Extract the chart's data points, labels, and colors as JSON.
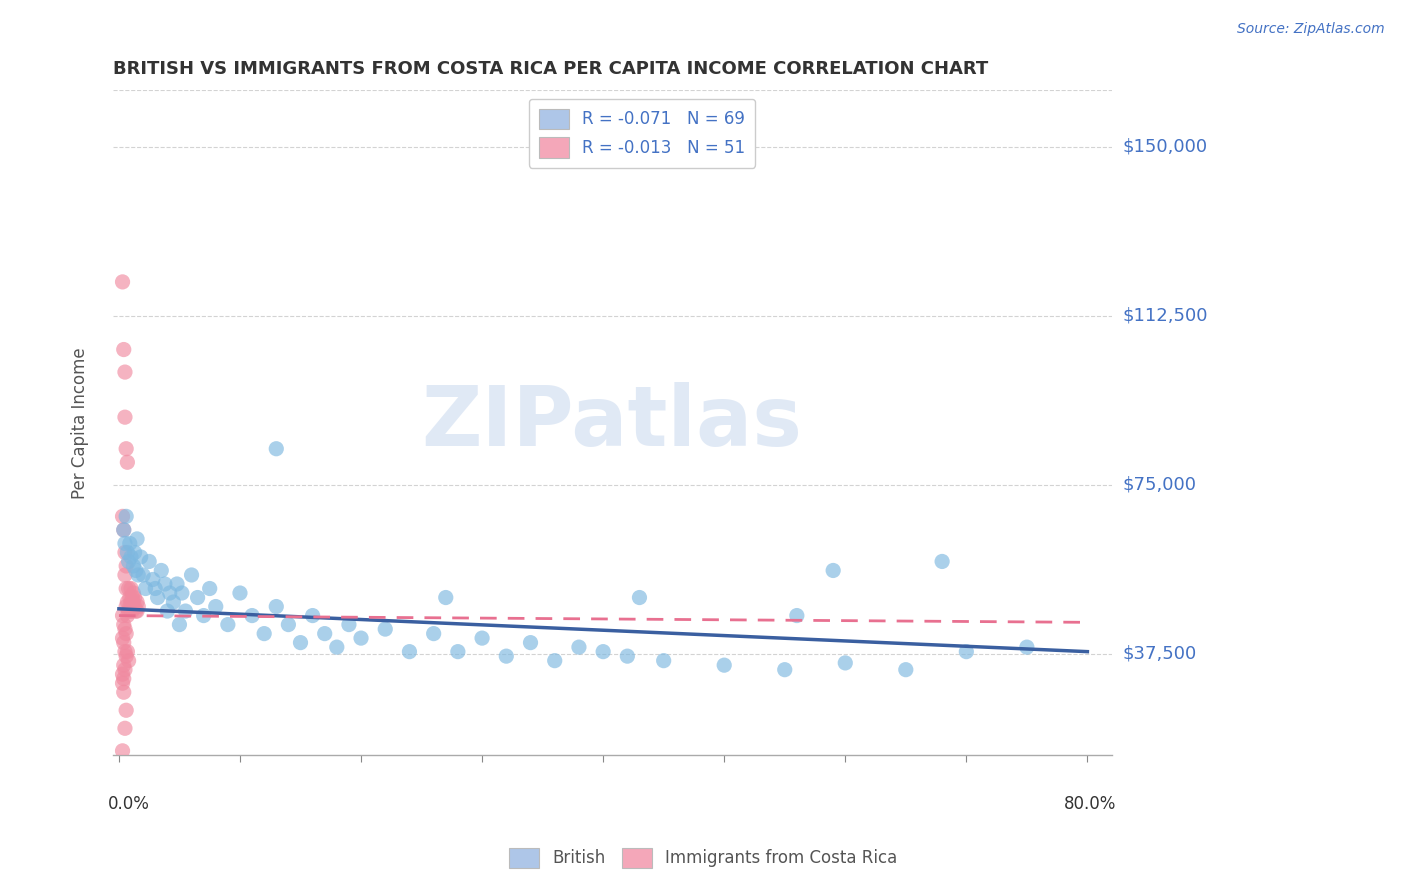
{
  "title": "BRITISH VS IMMIGRANTS FROM COSTA RICA PER CAPITA INCOME CORRELATION CHART",
  "source": "Source: ZipAtlas.com",
  "ylabel": "Per Capita Income",
  "ytick_labels": [
    "$37,500",
    "$75,000",
    "$112,500",
    "$150,000"
  ],
  "ytick_values": [
    37500,
    75000,
    112500,
    150000
  ],
  "ylim": [
    15000,
    162500
  ],
  "xlim": [
    -0.005,
    0.82
  ],
  "legend_entries": [
    {
      "label": "R = -0.071   N = 69",
      "color": "#aec6e8"
    },
    {
      "label": "R = -0.013   N = 51",
      "color": "#f4a7b9"
    }
  ],
  "legend_labels_bottom": [
    "British",
    "Immigrants from Costa Rica"
  ],
  "watermark": "ZIPatlas",
  "british_color": "#7db8e0",
  "costa_rica_color": "#f08aA0",
  "trend_british_color": "#3a5fa0",
  "trend_costa_rica_color": "#e87090",
  "british_trend": [
    47500,
    38000
  ],
  "costa_rica_trend": [
    46000,
    44500
  ],
  "british_points": [
    [
      0.004,
      65000
    ],
    [
      0.005,
      62000
    ],
    [
      0.006,
      68000
    ],
    [
      0.007,
      60000
    ],
    [
      0.008,
      58000
    ],
    [
      0.009,
      62000
    ],
    [
      0.01,
      59000
    ],
    [
      0.012,
      57000
    ],
    [
      0.013,
      60000
    ],
    [
      0.014,
      56000
    ],
    [
      0.015,
      63000
    ],
    [
      0.016,
      55000
    ],
    [
      0.018,
      59000
    ],
    [
      0.02,
      55000
    ],
    [
      0.022,
      52000
    ],
    [
      0.025,
      58000
    ],
    [
      0.028,
      54000
    ],
    [
      0.03,
      52000
    ],
    [
      0.032,
      50000
    ],
    [
      0.035,
      56000
    ],
    [
      0.038,
      53000
    ],
    [
      0.04,
      47000
    ],
    [
      0.042,
      51000
    ],
    [
      0.045,
      49000
    ],
    [
      0.048,
      53000
    ],
    [
      0.05,
      44000
    ],
    [
      0.052,
      51000
    ],
    [
      0.055,
      47000
    ],
    [
      0.06,
      55000
    ],
    [
      0.065,
      50000
    ],
    [
      0.07,
      46000
    ],
    [
      0.075,
      52000
    ],
    [
      0.08,
      48000
    ],
    [
      0.09,
      44000
    ],
    [
      0.1,
      51000
    ],
    [
      0.11,
      46000
    ],
    [
      0.12,
      42000
    ],
    [
      0.13,
      48000
    ],
    [
      0.14,
      44000
    ],
    [
      0.15,
      40000
    ],
    [
      0.16,
      46000
    ],
    [
      0.17,
      42000
    ],
    [
      0.18,
      39000
    ],
    [
      0.19,
      44000
    ],
    [
      0.2,
      41000
    ],
    [
      0.22,
      43000
    ],
    [
      0.24,
      38000
    ],
    [
      0.26,
      42000
    ],
    [
      0.28,
      38000
    ],
    [
      0.3,
      41000
    ],
    [
      0.32,
      37000
    ],
    [
      0.34,
      40000
    ],
    [
      0.36,
      36000
    ],
    [
      0.38,
      39000
    ],
    [
      0.4,
      38000
    ],
    [
      0.42,
      37000
    ],
    [
      0.45,
      36000
    ],
    [
      0.5,
      35000
    ],
    [
      0.55,
      34000
    ],
    [
      0.6,
      35500
    ],
    [
      0.65,
      34000
    ],
    [
      0.7,
      38000
    ],
    [
      0.75,
      39000
    ],
    [
      0.13,
      83000
    ],
    [
      0.27,
      50000
    ],
    [
      0.43,
      50000
    ],
    [
      0.56,
      46000
    ],
    [
      0.68,
      58000
    ],
    [
      0.59,
      56000
    ]
  ],
  "costa_rica_points": [
    [
      0.003,
      120000
    ],
    [
      0.004,
      105000
    ],
    [
      0.005,
      100000
    ],
    [
      0.005,
      90000
    ],
    [
      0.006,
      83000
    ],
    [
      0.007,
      80000
    ],
    [
      0.003,
      68000
    ],
    [
      0.004,
      65000
    ],
    [
      0.005,
      60000
    ],
    [
      0.006,
      57000
    ],
    [
      0.005,
      55000
    ],
    [
      0.006,
      52000
    ],
    [
      0.007,
      49000
    ],
    [
      0.006,
      48000
    ],
    [
      0.007,
      46000
    ],
    [
      0.008,
      47000
    ],
    [
      0.008,
      52000
    ],
    [
      0.009,
      50000
    ],
    [
      0.009,
      48000
    ],
    [
      0.01,
      52000
    ],
    [
      0.01,
      49000
    ],
    [
      0.01,
      47000
    ],
    [
      0.011,
      50000
    ],
    [
      0.011,
      47000
    ],
    [
      0.012,
      51000
    ],
    [
      0.012,
      49000
    ],
    [
      0.013,
      50000
    ],
    [
      0.013,
      48000
    ],
    [
      0.014,
      47000
    ],
    [
      0.015,
      49000
    ],
    [
      0.015,
      47000
    ],
    [
      0.016,
      48000
    ],
    [
      0.003,
      46000
    ],
    [
      0.004,
      44000
    ],
    [
      0.005,
      43000
    ],
    [
      0.006,
      42000
    ],
    [
      0.003,
      41000
    ],
    [
      0.004,
      40000
    ],
    [
      0.005,
      38000
    ],
    [
      0.006,
      37000
    ],
    [
      0.007,
      38000
    ],
    [
      0.008,
      36000
    ],
    [
      0.004,
      35000
    ],
    [
      0.005,
      34000
    ],
    [
      0.003,
      33000
    ],
    [
      0.004,
      32000
    ],
    [
      0.003,
      31000
    ],
    [
      0.004,
      29000
    ],
    [
      0.006,
      25000
    ],
    [
      0.005,
      21000
    ],
    [
      0.003,
      16000
    ]
  ]
}
